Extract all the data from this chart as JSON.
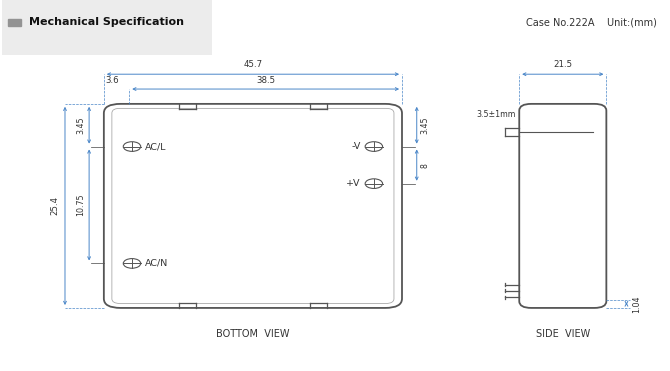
{
  "title": "Mechanical Specification",
  "case_info": "Case No.222A    Unit:(mm)",
  "bottom_view_label": "BOTTOM  VIEW",
  "side_view_label": "SIDE  VIEW",
  "bg_color": "#ffffff",
  "line_color": "#555555",
  "dim_color": "#555555",
  "text_color": "#333333",
  "dim_line_color": "#4a86c8",
  "dims": {
    "total_width": "45.7",
    "inner_width": "38.5",
    "indent_left": "3.6",
    "height_total": "25.4",
    "height_top": "3.45",
    "height_mid": "10.75",
    "height_8": "8",
    "side_width": "21.5",
    "side_tab": "3.5±1mm",
    "side_foot": "1.04"
  }
}
